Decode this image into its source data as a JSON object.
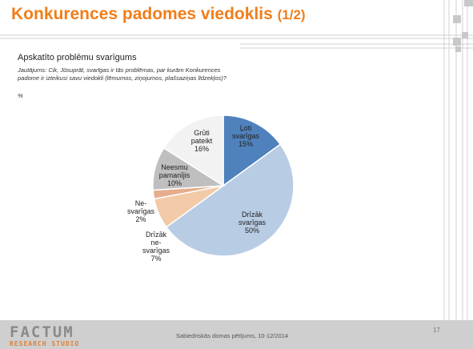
{
  "header": {
    "title": "Konkurences padomes viedoklis",
    "title_suffix": "(1/2)"
  },
  "section_title": "Apskatīto problēmu svarīgums",
  "question": "Jautājums: Cik, Jūsuprāt, svarīgas ir tās problēmas, par kurām Konkurences padome ir izteikusi savu viedokli (lēmumos, ziņojumos, plašsaziņas līdzekļos)?",
  "unit": "%",
  "chart_data": {
    "type": "pie",
    "start": "12 o'clock, clockwise",
    "slices": [
      {
        "label_lines": [
          "Ļoti",
          "svarīgas",
          "15%"
        ],
        "value": 15,
        "color": "#4f81bd"
      },
      {
        "label_lines": [
          "Drīzāk",
          "svarīgas",
          "50%"
        ],
        "value": 50,
        "color": "#b8cce4"
      },
      {
        "label_lines": [
          "Drīzāk",
          "ne-",
          "svarīgas",
          "7%"
        ],
        "value": 7,
        "color": "#f2caa8"
      },
      {
        "label_lines": [
          "Ne-",
          "svarīgas",
          "2%"
        ],
        "value": 2,
        "color": "#e6ad8c"
      },
      {
        "label_lines": [
          "Neesmu",
          "pamanījis",
          "10%"
        ],
        "value": 10,
        "color": "#bfbfbf"
      },
      {
        "label_lines": [
          "Grūti",
          "pateikt",
          "16%"
        ],
        "value": 16,
        "color": "#f2f2f2"
      }
    ]
  },
  "footer": {
    "logo_main": "FACTUM",
    "logo_sub": "RESEARCH STUDIO",
    "source": "Sabiedriskās domas pētījums, 10-12/2014",
    "page": "17"
  }
}
